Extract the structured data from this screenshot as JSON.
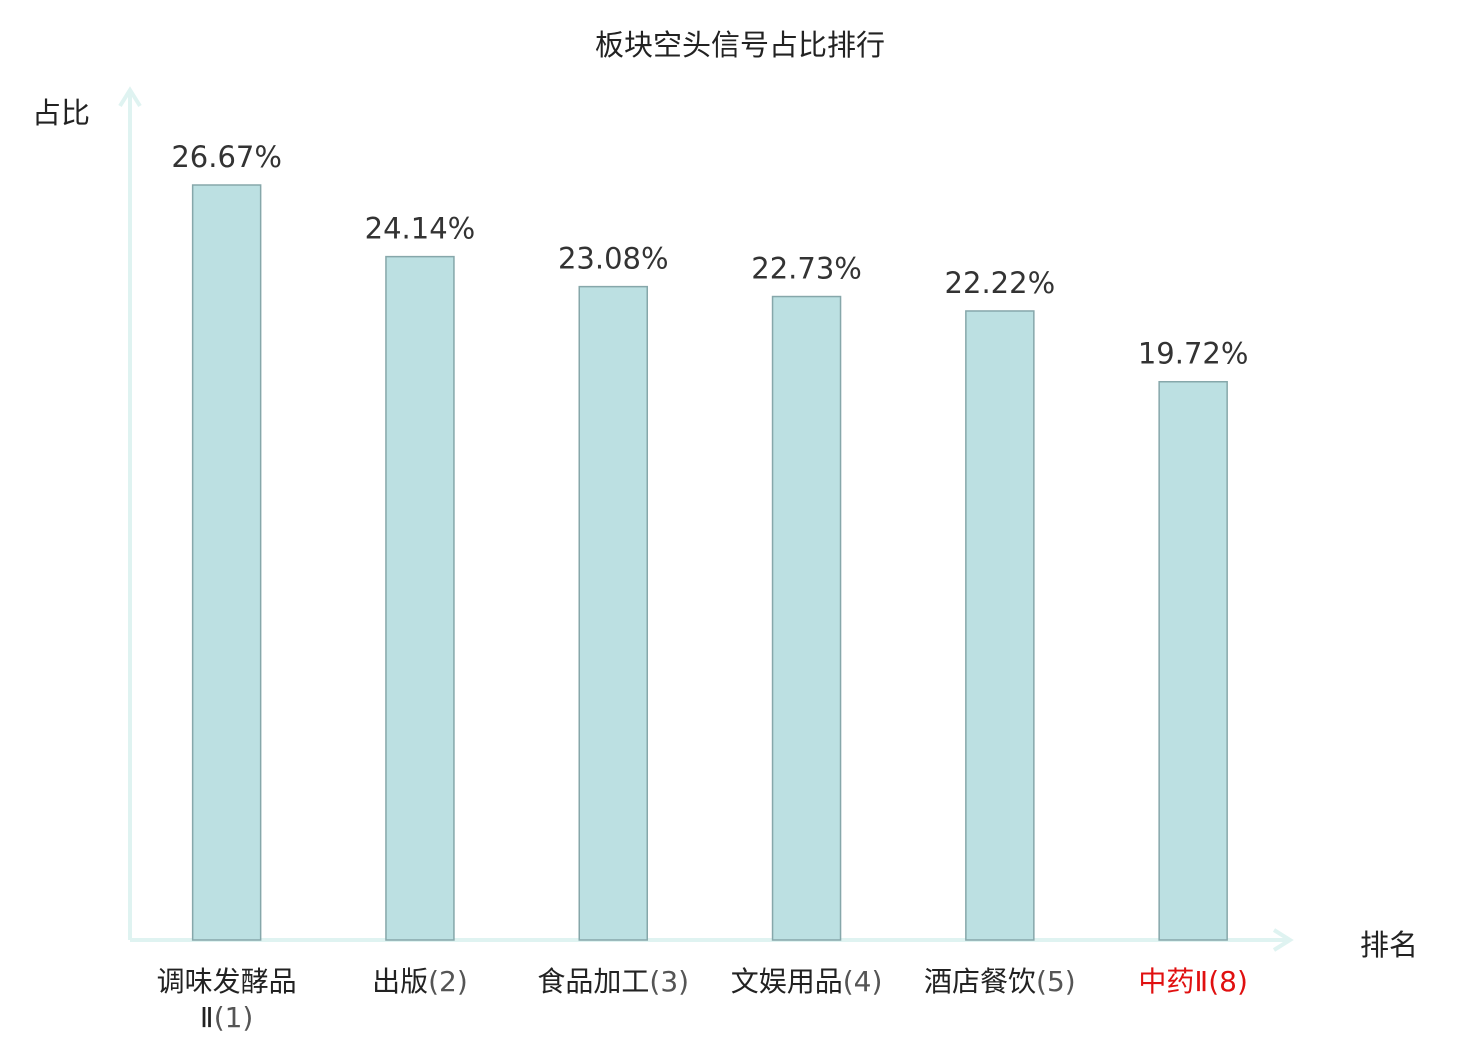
{
  "title": "板块空头信号占比排行",
  "ylabel": "占比",
  "xlabel": "排名",
  "colors": {
    "bar_fill": "#bce0e2",
    "bar_stroke": "#86a7aa",
    "axis": "#dff3f1",
    "highlight": "#e01010",
    "value_text": "#333333"
  },
  "chart_data": {
    "type": "bar",
    "title": "板块空头信号占比排行",
    "xlabel": "排名",
    "ylabel": "占比",
    "ylim": [
      0,
      30
    ],
    "grid": false,
    "categories": [
      {
        "name": "调味发酵品Ⅱ",
        "rank": "(1)",
        "highlight": false
      },
      {
        "name": "出版",
        "rank": "(2)",
        "highlight": false
      },
      {
        "name": "食品加工",
        "rank": "(3)",
        "highlight": false
      },
      {
        "name": "文娱用品",
        "rank": "(4)",
        "highlight": false
      },
      {
        "name": "酒店餐饮",
        "rank": "(5)",
        "highlight": false
      },
      {
        "name": "中药Ⅱ",
        "rank": "(8)",
        "highlight": true
      }
    ],
    "values": [
      26.67,
      24.14,
      23.08,
      22.73,
      22.22,
      19.72
    ],
    "value_labels": [
      "26.67%",
      "24.14%",
      "23.08%",
      "22.73%",
      "22.22%",
      "19.72%"
    ]
  }
}
